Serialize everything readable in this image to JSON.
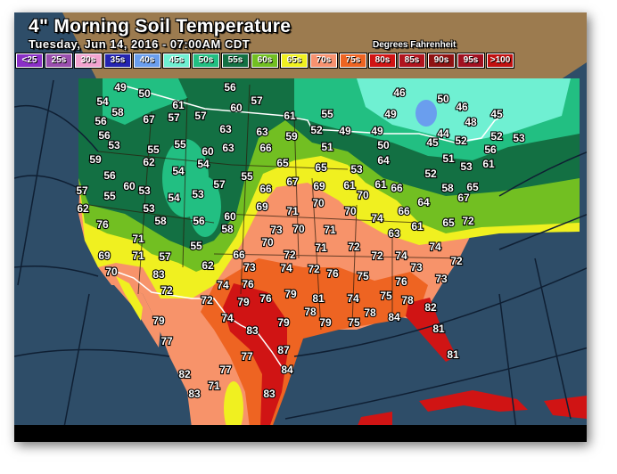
{
  "header": {
    "title": "4\" Morning Soil Temperature",
    "subtitle": "Tuesday, Jun 14, 2016 - 07:00AM CDT",
    "units": "Degrees Fahrenheit"
  },
  "legend": [
    {
      "label": "<25",
      "color": "#8a2fc6"
    },
    {
      "label": "25s",
      "color": "#9a4fae"
    },
    {
      "label": "30s",
      "color": "#f2a3cf"
    },
    {
      "label": "35s",
      "color": "#2424b0"
    },
    {
      "label": "40s",
      "color": "#6a9eee"
    },
    {
      "label": "45s",
      "color": "#6ff0d2"
    },
    {
      "label": "50s",
      "color": "#22bf82"
    },
    {
      "label": "55s",
      "color": "#137043"
    },
    {
      "label": "60s",
      "color": "#72bf22"
    },
    {
      "label": "65s",
      "color": "#f0f020"
    },
    {
      "label": "70s",
      "color": "#f79270"
    },
    {
      "label": "75s",
      "color": "#ee6422"
    },
    {
      "label": "80s",
      "color": "#d01414"
    },
    {
      "label": "85s",
      "color": "#b0141e"
    },
    {
      "label": "90s",
      "color": "#8e1212"
    },
    {
      "label": "95s",
      "color": "#a01020"
    },
    {
      "label": ">100",
      "color": "#c01010"
    }
  ],
  "readings": [
    49,
    50,
    54,
    58,
    61,
    67,
    57,
    57,
    56,
    60,
    57,
    61,
    56,
    56,
    53,
    55,
    55,
    60,
    63,
    63,
    63,
    59,
    66,
    65,
    59,
    62,
    54,
    54,
    57,
    55,
    56,
    60,
    53,
    57,
    55,
    54,
    53,
    66,
    67,
    62,
    53,
    58,
    56,
    60,
    58,
    69,
    71,
    76,
    73,
    70,
    70,
    71,
    55,
    46,
    50,
    46,
    48,
    45,
    55,
    49,
    52,
    49,
    49,
    50,
    44,
    45,
    52,
    52,
    53,
    51,
    56,
    65,
    53,
    64,
    51,
    53,
    61,
    52,
    69,
    61,
    61,
    66,
    58,
    65,
    70,
    64,
    67,
    70,
    70,
    74,
    66,
    65,
    72,
    61,
    63,
    71,
    71,
    74,
    72,
    72,
    66,
    72,
    73,
    74,
    72,
    76,
    75,
    74,
    76,
    79,
    76,
    81,
    74,
    75,
    79,
    78,
    74,
    79,
    79,
    75,
    83,
    78,
    69,
    71,
    57,
    62,
    70,
    83,
    72,
    79,
    77,
    82,
    83,
    71,
    77,
    77,
    84,
    87,
    83,
    72,
    74,
    72,
    73,
    76,
    73,
    78,
    82,
    84,
    81,
    81
  ]
}
